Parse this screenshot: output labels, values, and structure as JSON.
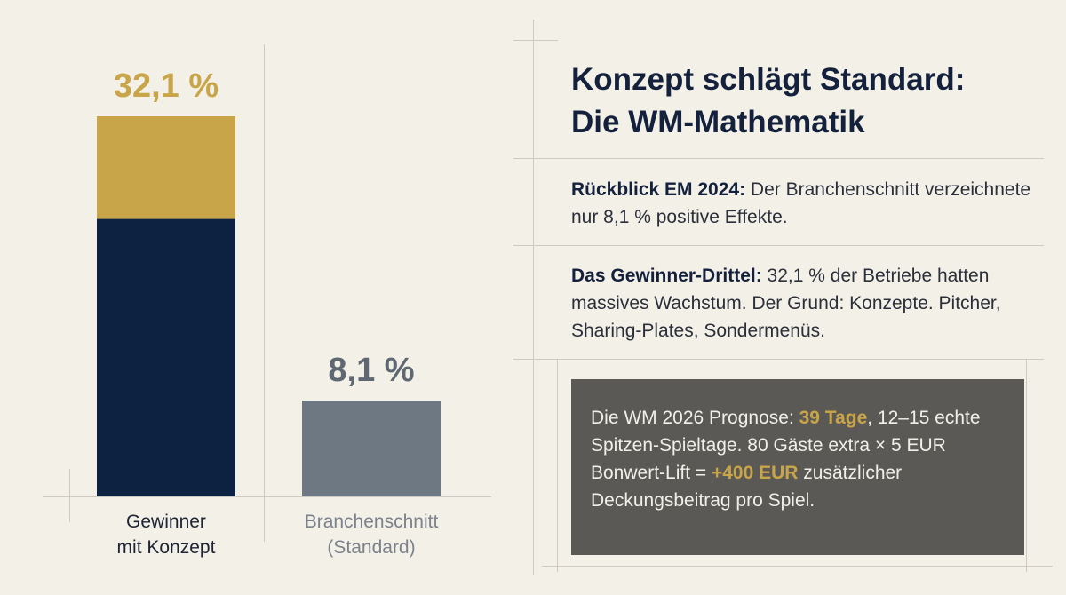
{
  "chart_data": {
    "type": "bar",
    "categories": [
      "Gewinner\nmit Konzept",
      "Branchenschnitt\n(Standard)"
    ],
    "values": [
      32.1,
      8.1
    ],
    "value_labels": [
      "32,1 %",
      "8,1 %"
    ],
    "unit": "%",
    "ylim": [
      0,
      33
    ],
    "grid": false,
    "colors": {
      "winner_top": "#c9a54a",
      "winner_bottom": "#0d2240",
      "standard": "#6e7882"
    }
  },
  "panel": {
    "title_line1": "Konzept schlägt Standard:",
    "title_line2": "Die WM-Mathematik",
    "review_label": "Rückblick EM 2024:",
    "review_text": " Der Branchenschnitt verzeichnete nur 8,1 % positive Effekte.",
    "winners_label": "Das Gewinner-Drittel:",
    "winners_text": " 32,1 % der Betriebe hatten massives Wachstum. Der Grund: Konzepte. Pitcher, Sharing-Plates, Sondermenüs.",
    "forecast_pre": "Die WM 2026 Prognose: ",
    "forecast_days": "39 Tage",
    "forecast_mid": ", 12–15 echte Spitzen-Spieltage. 80 Gäste extra × 5 EUR Bonwert-Lift = ",
    "forecast_amount": "+400 EUR",
    "forecast_post": " zusätzlicher Deckungsbeitrag pro Spiel."
  },
  "colors": {
    "background": "#f3f0e8",
    "navy": "#14213d",
    "gold": "#c9a54a",
    "box": "#5a5955"
  }
}
